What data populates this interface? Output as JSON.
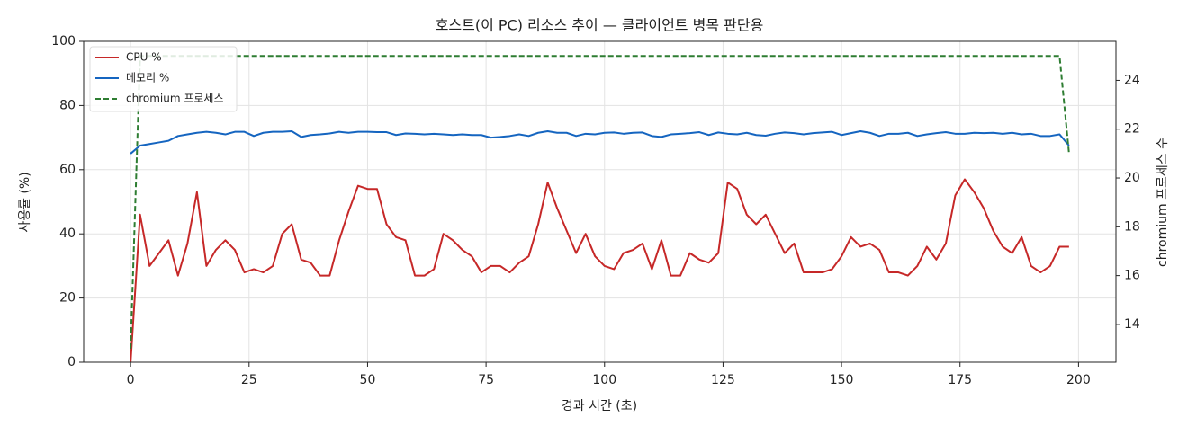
{
  "chart_data": {
    "type": "line",
    "title": "호스트(이 PC) 리소스 추이 — 클라이언트 병목 판단용",
    "x_label": "경과 시간 (초)",
    "y_label": "사용률 (%)",
    "y2_label": "chromium 프로세스 수",
    "x": [
      0,
      2,
      4,
      6,
      8,
      10,
      12,
      14,
      16,
      18,
      20,
      22,
      24,
      26,
      28,
      30,
      32,
      34,
      36,
      38,
      40,
      42,
      44,
      46,
      48,
      50,
      52,
      54,
      56,
      58,
      60,
      62,
      64,
      66,
      68,
      70,
      72,
      74,
      76,
      78,
      80,
      82,
      84,
      86,
      88,
      90,
      92,
      94,
      96,
      98,
      100,
      102,
      104,
      106,
      108,
      110,
      112,
      114,
      116,
      118,
      120,
      122,
      124,
      126,
      128,
      130,
      132,
      134,
      136,
      138,
      140,
      142,
      144,
      146,
      148,
      150,
      152,
      154,
      156,
      158,
      160,
      162,
      164,
      166,
      168,
      170,
      172,
      174,
      176,
      178,
      180,
      182,
      184,
      186,
      188,
      190,
      192,
      194,
      196,
      198
    ],
    "series": [
      {
        "name": "CPU %",
        "color": "#c62828",
        "linestyle": "solid",
        "values": [
          0,
          46,
          30,
          34,
          38,
          27,
          37,
          53,
          30,
          35,
          38,
          35,
          28,
          29,
          28,
          30,
          40,
          43,
          32,
          31,
          27,
          27,
          38,
          47,
          55,
          54,
          54,
          43,
          39,
          38,
          27,
          27,
          29,
          40,
          38,
          35,
          33,
          28,
          30,
          30,
          28,
          31,
          33,
          43,
          56,
          48,
          41,
          34,
          40,
          33,
          30,
          29,
          34,
          35,
          37,
          29,
          38,
          27,
          27,
          34,
          32,
          31,
          34,
          56,
          54,
          46,
          43,
          46,
          40,
          34,
          37,
          28,
          28,
          28,
          29,
          33,
          39,
          36,
          37,
          35,
          28,
          28,
          27,
          30,
          36,
          32,
          37,
          52,
          57,
          53,
          48,
          41,
          36,
          34,
          39,
          30,
          28,
          30,
          36,
          36
        ]
      },
      {
        "name": "메모리 %",
        "color": "#1565c0",
        "linestyle": "solid",
        "values": [
          65,
          67.5,
          68,
          68.5,
          69,
          70.5,
          71,
          71.5,
          71.8,
          71.5,
          71,
          71.8,
          71.8,
          70.5,
          71.5,
          71.8,
          71.8,
          72,
          70.2,
          70.8,
          71,
          71.3,
          71.8,
          71.5,
          71.8,
          71.8,
          71.7,
          71.7,
          70.8,
          71.3,
          71.2,
          71,
          71.2,
          71,
          70.8,
          71,
          70.8,
          70.8,
          70,
          70.2,
          70.5,
          71,
          70.5,
          71.5,
          72,
          71.5,
          71.5,
          70.5,
          71.2,
          71,
          71.5,
          71.6,
          71.2,
          71.5,
          71.6,
          70.5,
          70.2,
          71,
          71.2,
          71.4,
          71.7,
          70.8,
          71.6,
          71.2,
          71,
          71.5,
          70.8,
          70.6,
          71.2,
          71.6,
          71.4,
          71,
          71.4,
          71.6,
          71.8,
          70.8,
          71.4,
          72,
          71.5,
          70.5,
          71.2,
          71.2,
          71.5,
          70.5,
          71,
          71.4,
          71.7,
          71.2,
          71.2,
          71.5,
          71.4,
          71.5,
          71.2,
          71.5,
          71,
          71.2,
          70.5,
          70.5,
          71,
          67.5
        ]
      },
      {
        "name": "chromium 프로세스",
        "color": "#2e7d32",
        "linestyle": "dashed",
        "axis": "y2",
        "values": [
          13,
          25,
          25,
          25,
          25,
          25,
          25,
          25,
          25,
          25,
          25,
          25,
          25,
          25,
          25,
          25,
          25,
          25,
          25,
          25,
          25,
          25,
          25,
          25,
          25,
          25,
          25,
          25,
          25,
          25,
          25,
          25,
          25,
          25,
          25,
          25,
          25,
          25,
          25,
          25,
          25,
          25,
          25,
          25,
          25,
          25,
          25,
          25,
          25,
          25,
          25,
          25,
          25,
          25,
          25,
          25,
          25,
          25,
          25,
          25,
          25,
          25,
          25,
          25,
          25,
          25,
          25,
          25,
          25,
          25,
          25,
          25,
          25,
          25,
          25,
          25,
          25,
          25,
          25,
          25,
          25,
          25,
          25,
          25,
          25,
          25,
          25,
          25,
          25,
          25,
          25,
          25,
          25,
          25,
          25,
          25,
          25,
          25,
          25,
          21
        ]
      }
    ],
    "xlim": [
      -9.9,
      207.9
    ],
    "xticks": [
      0,
      25,
      50,
      75,
      100,
      125,
      150,
      175,
      200
    ],
    "ylim": [
      0,
      100
    ],
    "yticks": [
      0,
      20,
      40,
      60,
      80,
      100
    ],
    "y2lim": [
      12.45,
      25.6
    ],
    "y2ticks": [
      14,
      16,
      18,
      20,
      22,
      24
    ],
    "grid": true,
    "legend": "upper-left"
  }
}
